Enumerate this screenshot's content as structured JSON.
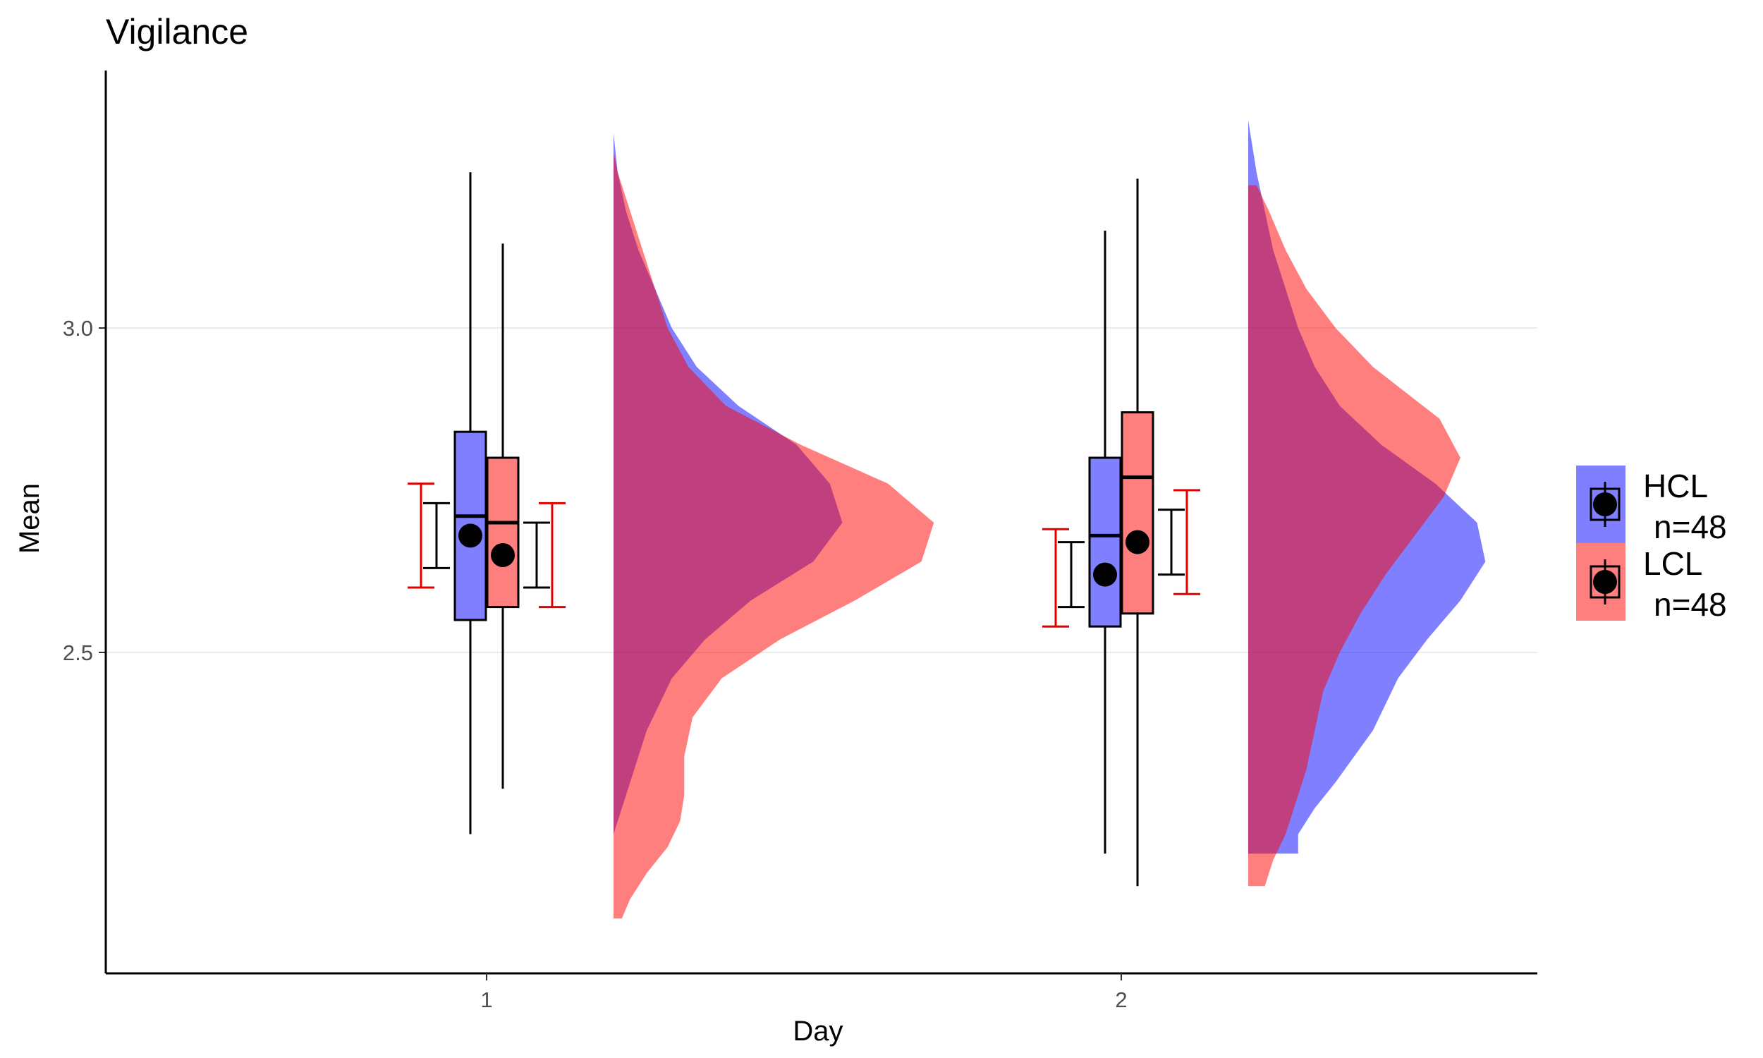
{
  "chart_data": {
    "type": "raincloud",
    "title": "Vigilance",
    "xlabel": "Day",
    "ylabel": "Mean",
    "categories": [
      "1",
      "2"
    ],
    "yticks": [
      "2.5",
      "3.0"
    ],
    "ylim": [
      2.03,
      3.38
    ],
    "grid": "horizontal-major",
    "legend_position": "right",
    "series": [
      {
        "name": "HCL",
        "n_label": "n=48",
        "fill": "#0000ff",
        "boxes": [
          {
            "x": "1",
            "whisker_low": 2.22,
            "q1": 2.55,
            "median": 2.71,
            "q3": 2.84,
            "whisker_high": 3.24,
            "mean": 2.68,
            "ci_low": 2.63,
            "ci_high": 2.73,
            "ci_outer_low": 2.6,
            "ci_outer_high": 2.76
          },
          {
            "x": "2",
            "whisker_low": 2.19,
            "q1": 2.54,
            "median": 2.68,
            "q3": 2.8,
            "whisker_high": 3.15,
            "mean": 2.62,
            "ci_low": 2.57,
            "ci_high": 2.67,
            "ci_outer_low": 2.54,
            "ci_outer_high": 2.69
          }
        ],
        "densities": [
          {
            "x": "1",
            "y": [
              2.22,
              2.3,
              2.38,
              2.46,
              2.52,
              2.58,
              2.64,
              2.7,
              2.76,
              2.82,
              2.88,
              2.94,
              3.0,
              3.06,
              3.12,
              3.18,
              3.24,
              3.3,
              3.33
            ],
            "w": [
              0.0,
              0.04,
              0.08,
              0.14,
              0.22,
              0.33,
              0.48,
              0.55,
              0.52,
              0.44,
              0.3,
              0.2,
              0.14,
              0.1,
              0.06,
              0.03,
              0.01,
              0.0,
              0.0
            ]
          },
          {
            "x": "2",
            "y": [
              2.19,
              2.22,
              2.26,
              2.3,
              2.38,
              2.46,
              2.52,
              2.58,
              2.64,
              2.7,
              2.76,
              2.82,
              2.88,
              2.94,
              3.0,
              3.06,
              3.12,
              3.18,
              3.24,
              3.28,
              3.32
            ],
            "w": [
              0.12,
              0.12,
              0.16,
              0.21,
              0.3,
              0.36,
              0.43,
              0.51,
              0.57,
              0.55,
              0.45,
              0.32,
              0.22,
              0.16,
              0.12,
              0.09,
              0.06,
              0.04,
              0.02,
              0.01,
              0.0
            ]
          }
        ]
      },
      {
        "name": "LCL",
        "n_label": "n=48",
        "fill": "#ff0000",
        "boxes": [
          {
            "x": "1",
            "whisker_low": 2.29,
            "q1": 2.57,
            "median": 2.7,
            "q3": 2.8,
            "whisker_high": 3.13,
            "mean": 2.65,
            "ci_low": 2.6,
            "ci_high": 2.7,
            "ci_outer_low": 2.57,
            "ci_outer_high": 2.73
          },
          {
            "x": "2",
            "whisker_low": 2.14,
            "q1": 2.56,
            "median": 2.77,
            "q3": 2.87,
            "whisker_high": 3.23,
            "mean": 2.67,
            "ci_low": 2.62,
            "ci_high": 2.72,
            "ci_outer_low": 2.59,
            "ci_outer_high": 2.75
          }
        ],
        "densities": [
          {
            "x": "1",
            "y": [
              2.09,
              2.12,
              2.16,
              2.2,
              2.24,
              2.28,
              2.34,
              2.4,
              2.46,
              2.52,
              2.58,
              2.64,
              2.7,
              2.76,
              2.82,
              2.88,
              2.94,
              3.0,
              3.06,
              3.12,
              3.18,
              3.24,
              3.27
            ],
            "w": [
              0.02,
              0.04,
              0.08,
              0.13,
              0.16,
              0.17,
              0.17,
              0.19,
              0.26,
              0.4,
              0.58,
              0.74,
              0.77,
              0.66,
              0.45,
              0.27,
              0.18,
              0.13,
              0.1,
              0.07,
              0.04,
              0.01,
              0.0
            ]
          },
          {
            "x": "2",
            "y": [
              2.14,
              2.18,
              2.22,
              2.26,
              2.32,
              2.38,
              2.44,
              2.5,
              2.56,
              2.62,
              2.68,
              2.74,
              2.8,
              2.86,
              2.9,
              2.94,
              3.0,
              3.06,
              3.12,
              3.18,
              3.22
            ],
            "w": [
              0.04,
              0.06,
              0.09,
              0.11,
              0.14,
              0.16,
              0.18,
              0.22,
              0.27,
              0.33,
              0.4,
              0.47,
              0.51,
              0.46,
              0.38,
              0.3,
              0.21,
              0.14,
              0.09,
              0.05,
              0.02
            ]
          }
        ]
      }
    ]
  }
}
